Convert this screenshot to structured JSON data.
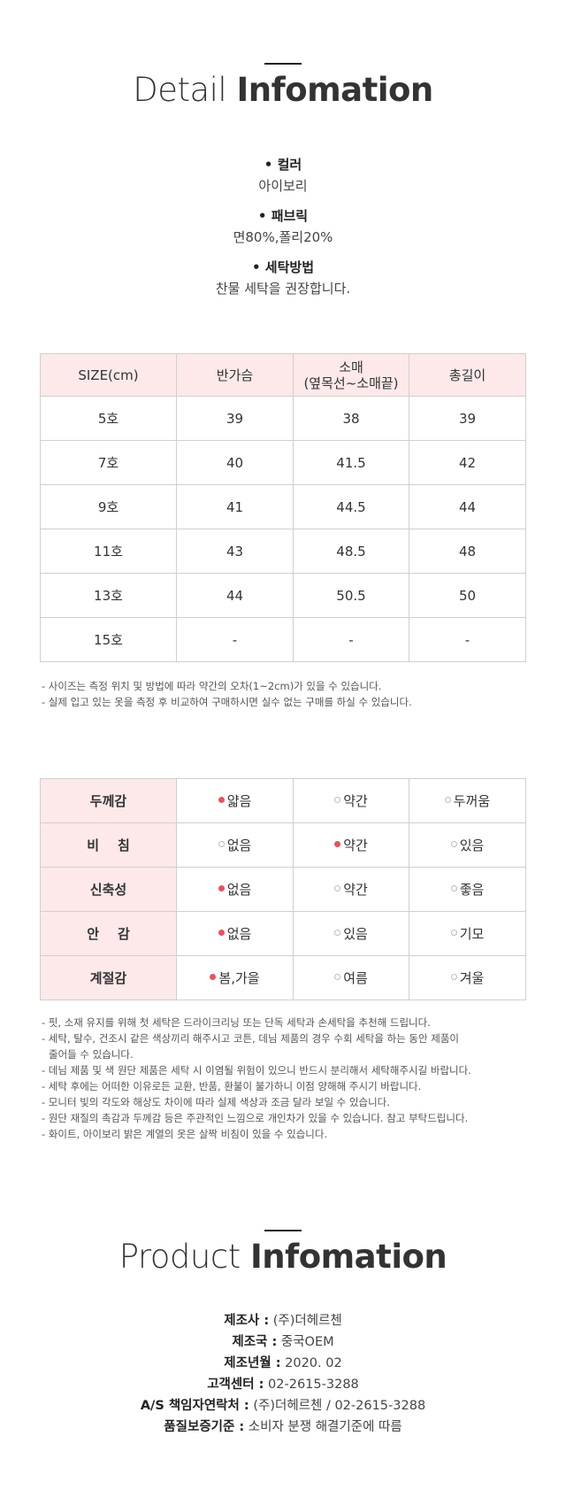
{
  "detail": {
    "title_light": "Detail",
    "title_bold": "Infomation",
    "specs": [
      {
        "label": "• 컬러",
        "value": "아이보리"
      },
      {
        "label": "• 패브릭",
        "value": "면80%,폴리20%"
      },
      {
        "label": "• 세탁방법",
        "value": "찬물 세탁을 권장합니다."
      }
    ]
  },
  "size_table": {
    "headers": [
      "SIZE(cm)",
      "반가슴",
      "소매\n(옆목선~소매끝)",
      "총길이"
    ],
    "header_sleeve_line1": "소매",
    "header_sleeve_line2": "(옆목선~소매끝)",
    "rows": [
      [
        "5호",
        "39",
        "38",
        "39"
      ],
      [
        "7호",
        "40",
        "41.5",
        "42"
      ],
      [
        "9호",
        "41",
        "44.5",
        "44"
      ],
      [
        "11호",
        "43",
        "48.5",
        "48"
      ],
      [
        "13호",
        "44",
        "50.5",
        "50"
      ],
      [
        "15호",
        "-",
        "-",
        "-"
      ]
    ],
    "notes": [
      "- 사이즈는 측정 위치 및 방법에 따라 약간의 오차(1~2cm)가 있을 수 있습니다.",
      "- 실제 입고 있는 옷을 측정 후 비교하여 구매하시면 실수 없는 구매를 하실 수 있습니다."
    ]
  },
  "feel_table": {
    "rows": [
      {
        "label": "두께감",
        "options": [
          "얇음",
          "약간",
          "두꺼움"
        ],
        "selected": 0
      },
      {
        "label": "비    침",
        "options": [
          "없음",
          "약간",
          "있음"
        ],
        "selected": 1
      },
      {
        "label": "신축성",
        "options": [
          "없음",
          "약간",
          "좋음"
        ],
        "selected": 0
      },
      {
        "label": "안    감",
        "options": [
          "없음",
          "있음",
          "기모"
        ],
        "selected": 0
      },
      {
        "label": "계절감",
        "options": [
          "봄,가을",
          "여름",
          "겨울"
        ],
        "selected": 0
      }
    ],
    "notes": [
      "- 핏, 소재 유지를 위해 첫 세탁은 드라이크리닝 또는 단독 세탁과 손세탁을 추천해 드립니다.",
      "- 세탁, 탈수, 건조시 같은 색상끼리 해주시고 코튼, 데님 제품의 경우 수회 세탁을 하는 동안 제품이",
      "줄어들 수 있습니다.",
      "- 데님 제품 및 색 원단 제품은 세탁 시 이염될 위험이 있으니 반드시 분리해서 세탁해주시길 바랍니다.",
      "- 세탁 후에는 어떠한 이유로든 교환, 반품, 환불이 불가하니 이점 양해해 주시기 바랍니다.",
      "- 모니터 빛의 각도와 해상도 차이에 따라 실제 색상과 조금 달라 보일 수 있습니다.",
      "- 원단 재질의 촉감과 두께감 등은 주관적인 느낌으로 개인차가 있을 수 있습니다. 참고 부탁드립니다.",
      "- 화이트, 아이보리 밝은 계열의 옷은 살짝 비침이 있을 수 있습니다."
    ]
  },
  "product": {
    "title_light": "Product",
    "title_bold": "Infomation",
    "lines": [
      {
        "label": "제조사 :",
        "value": "(주)더헤르첸"
      },
      {
        "label": "제조국 :",
        "value": "중국OEM"
      },
      {
        "label": "제조년월 :",
        "value": "2020. 02"
      },
      {
        "label": "고객센터 :",
        "value": "02-2615-3288"
      },
      {
        "label": "A/S 책임자연락처 :",
        "value": "(주)더헤르첸 / 02-2615-3288"
      },
      {
        "label": "품질보증기준 :",
        "value": "소비자 분쟁 해결기준에 따름"
      }
    ]
  },
  "colors": {
    "accent_dot": "#e8525c",
    "header_bg": "#fde9ea",
    "border": "#cfcfcf"
  }
}
